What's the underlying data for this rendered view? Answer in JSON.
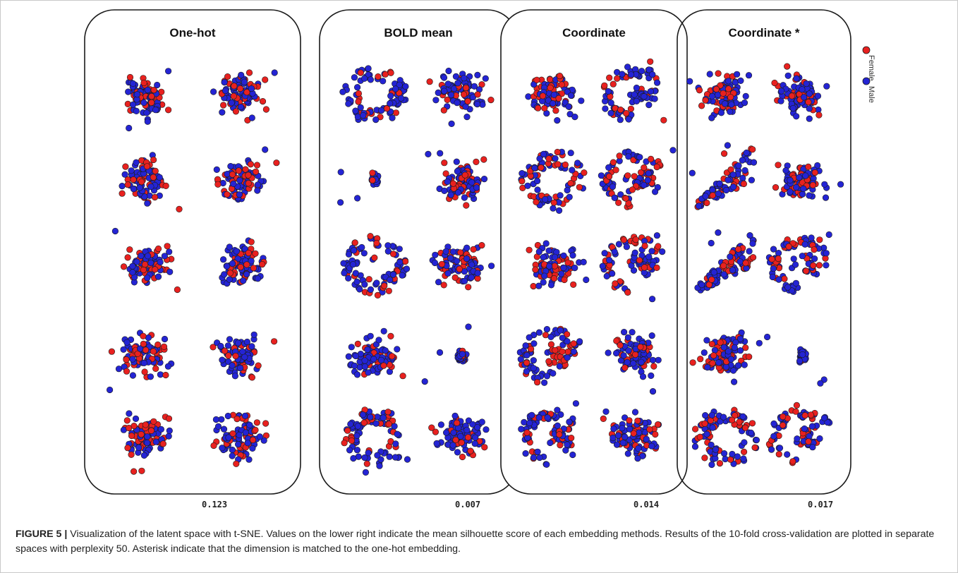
{
  "figure": {
    "caption_label": "FIGURE 5 |",
    "caption_text": " Visualization of the latent space with t-SNE. Values on the lower right indicate the mean silhouette score of each embedding methods. Results of the 10-fold cross-validation are plotted in separate spaces with perplexity 50. Asterisk indicate that the dimension is matched to the one-hot embedding."
  },
  "chart_data": {
    "type": "scatter",
    "description_legend": [
      {
        "name": "Female",
        "color": "#e8211f"
      },
      {
        "name": "Male",
        "color": "#2424d4"
      }
    ],
    "colors": {
      "female": "#e8211f",
      "male": "#2424d4",
      "edge": "#1a1a1a"
    },
    "grid": false,
    "legend_position": "right",
    "folds_per_panel": 10,
    "panels": [
      {
        "title": "One-hot",
        "score": "0.123",
        "folds": [
          {
            "shape": "blob",
            "female_share": 0.45
          },
          {
            "shape": "blob",
            "female_share": 0.35
          },
          {
            "shape": "blob",
            "female_share": 0.45
          },
          {
            "shape": "blob",
            "female_share": 0.4
          },
          {
            "shape": "blob",
            "female_share": 0.3
          },
          {
            "shape": "blob",
            "female_share": 0.3
          },
          {
            "shape": "blob",
            "female_share": 0.35
          },
          {
            "shape": "blob",
            "female_share": 0.35
          },
          {
            "shape": "blob",
            "female_share": 0.4
          },
          {
            "shape": "blob",
            "female_share": 0.35
          }
        ]
      },
      {
        "title": "BOLD mean",
        "score": "0.007",
        "folds": [
          {
            "shape": "ring",
            "female_share": 0.3
          },
          {
            "shape": "blob",
            "female_share": 0.3
          },
          {
            "shape": "tight",
            "female_share": 0.2
          },
          {
            "shape": "blob",
            "female_share": 0.35
          },
          {
            "shape": "ring",
            "female_share": 0.3
          },
          {
            "shape": "blob",
            "female_share": 0.4
          },
          {
            "shape": "blob",
            "female_share": 0.35
          },
          {
            "shape": "tight",
            "female_share": 0.25
          },
          {
            "shape": "ring",
            "female_share": 0.3
          },
          {
            "shape": "blob",
            "female_share": 0.3
          }
        ]
      },
      {
        "title": "Coordinate",
        "score": "0.014",
        "folds": [
          {
            "shape": "blob",
            "female_share": 0.4
          },
          {
            "shape": "arc",
            "female_share": 0.3
          },
          {
            "shape": "ring",
            "female_share": 0.35
          },
          {
            "shape": "arc",
            "female_share": 0.35
          },
          {
            "shape": "blob",
            "female_share": 0.35
          },
          {
            "shape": "arc",
            "female_share": 0.35
          },
          {
            "shape": "arc",
            "female_share": 0.35
          },
          {
            "shape": "blob",
            "female_share": 0.35
          },
          {
            "shape": "arc",
            "female_share": 0.3
          },
          {
            "shape": "blob",
            "female_share": 0.3
          }
        ]
      },
      {
        "title": "Coordinate *",
        "score": "0.017",
        "folds": [
          {
            "shape": "blob",
            "female_share": 0.3
          },
          {
            "shape": "blob",
            "female_share": 0.35
          },
          {
            "shape": "wedge",
            "female_share": 0.35
          },
          {
            "shape": "blob",
            "female_share": 0.4
          },
          {
            "shape": "wedge",
            "female_share": 0.35
          },
          {
            "shape": "arc",
            "female_share": 0.3
          },
          {
            "shape": "blob",
            "female_share": 0.35
          },
          {
            "shape": "tight",
            "female_share": 0.1
          },
          {
            "shape": "ring",
            "female_share": 0.35
          },
          {
            "shape": "arc",
            "female_share": 0.35
          }
        ]
      }
    ]
  }
}
